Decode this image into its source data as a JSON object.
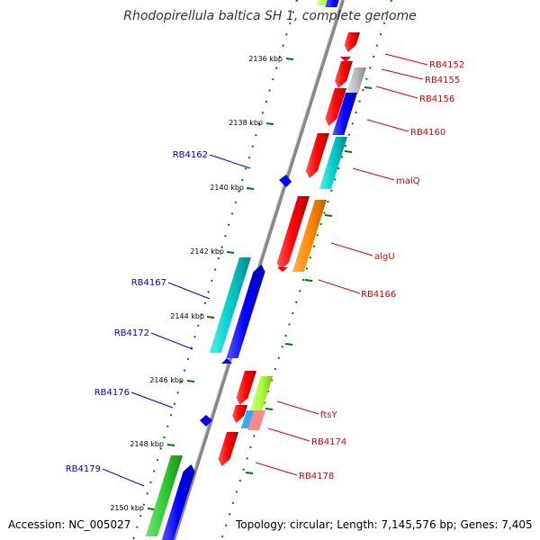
{
  "title": "Rhodopirellula baltica SH 1, complete genome",
  "footer": {
    "accession": "Accession: NC_005027",
    "summary": "Topology: circular; Length: 7,145,576 bp; Genes: 7,405"
  },
  "kbp_labels": [
    "2136 kbp",
    "2138 kbp",
    "2140 kbp",
    "2142 kbp",
    "2144 kbp",
    "2146 kbp",
    "2148 kbp",
    "2150 kbp"
  ],
  "right_labels": [
    "RB4152",
    "RB4155",
    "RB4156",
    "RB4160",
    "malQ",
    "algU",
    "RB4166",
    "ftsY",
    "RB4174",
    "RB4178"
  ],
  "left_labels": [
    "RB4162",
    "RB4167",
    "RB4172",
    "RB4176",
    "RB4179"
  ],
  "colors": {
    "red": "#ff0000",
    "blue": "#0000ff",
    "cyan": "#00cccc",
    "orange": "#ff8c00",
    "green": "#33cc33",
    "lime": "#aaff33",
    "grey": "#bbbbbb",
    "pink": "#ff8888",
    "sky": "#33aaff",
    "backbone": "#888888",
    "ticks": "#007700",
    "right_label_color": "#e00000",
    "left_label_color": "#0000cc"
  }
}
